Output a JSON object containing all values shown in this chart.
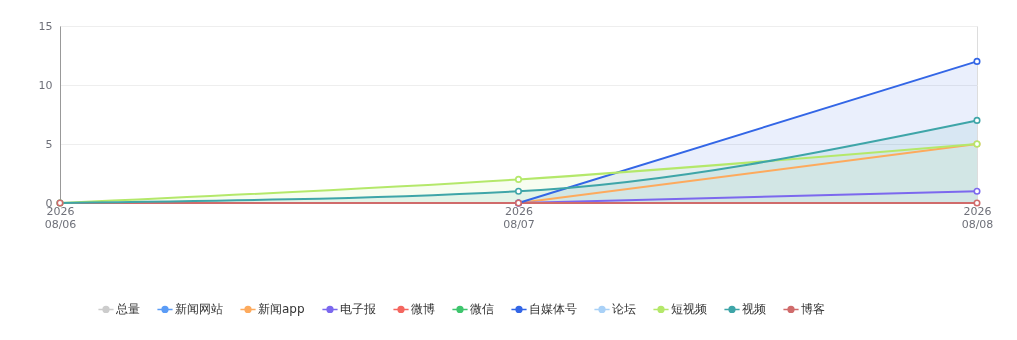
{
  "chart_data": {
    "type": "line",
    "categories": [
      "2026\n08/06",
      "2026\n08/07",
      "2026\n08/08"
    ],
    "ylim": [
      0,
      15
    ],
    "yticks": [
      0,
      5,
      10,
      15
    ],
    "grid": "y",
    "legend": "bottom",
    "marker": "circle",
    "line_style": "solid",
    "series": [
      {
        "name": "总量",
        "color": "#cccccc",
        "values": [
          null,
          null,
          null
        ]
      },
      {
        "name": "新闻网站",
        "color": "#5b9cf6",
        "values": [
          null,
          null,
          null
        ]
      },
      {
        "name": "新闻app",
        "color": "#fdaa5d",
        "values": [
          null,
          0,
          5
        ]
      },
      {
        "name": "电子报",
        "color": "#7b68ee",
        "values": [
          null,
          0,
          1
        ]
      },
      {
        "name": "微博",
        "color": "#f4665f",
        "values": [
          null,
          null,
          null
        ]
      },
      {
        "name": "微信",
        "color": "#3ec56d",
        "values": [
          null,
          null,
          null
        ]
      },
      {
        "name": "自媒体号",
        "color": "#3366e6",
        "type": "area",
        "values": [
          null,
          0,
          12
        ]
      },
      {
        "name": "论坛",
        "color": "#a9d1f7",
        "values": [
          null,
          null,
          null
        ]
      },
      {
        "name": "短视频",
        "color": "#b4e86a",
        "type": "area",
        "values": [
          0,
          2,
          5
        ]
      },
      {
        "name": "视频",
        "color": "#3ea5a8",
        "type": "area",
        "values": [
          0,
          1,
          7
        ]
      },
      {
        "name": "博客",
        "color": "#d06b6b",
        "values": [
          0,
          0,
          0
        ]
      }
    ]
  }
}
